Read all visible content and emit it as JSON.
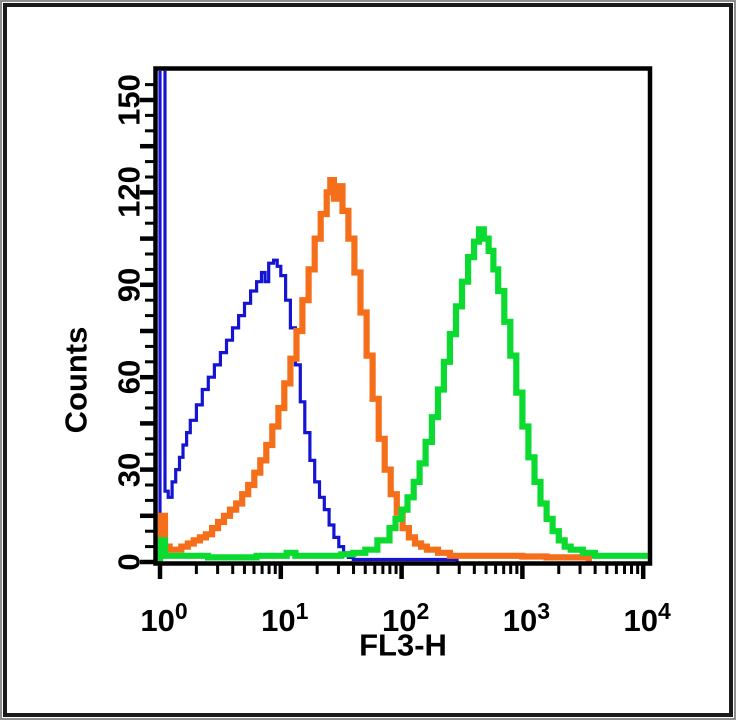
{
  "window": {
    "background": "#ffffff",
    "outer_edge_color": "#8f8f8f",
    "border_color": "#1b1b1b"
  },
  "chart_data": {
    "type": "line",
    "subtype": "histogram-step-overlay",
    "title": "",
    "xlabel": "FL3-H",
    "ylabel": "Counts",
    "x_scale": "log10",
    "xlim": [
      1,
      10000
    ],
    "ylim": [
      0,
      160
    ],
    "grid": false,
    "legend": "none",
    "axis_color": "#000000",
    "x_ticks": [
      {
        "value": 1,
        "base": "10",
        "exp": "0"
      },
      {
        "value": 10,
        "base": "10",
        "exp": "1"
      },
      {
        "value": 100,
        "base": "10",
        "exp": "2"
      },
      {
        "value": 1000,
        "base": "10",
        "exp": "3"
      },
      {
        "value": 10000,
        "base": "10",
        "exp": "4"
      }
    ],
    "x_minor_ticks_per_decade": [
      2,
      3,
      4,
      5,
      6,
      7,
      8,
      9
    ],
    "y_ticks": [
      {
        "value": 0,
        "label": "0"
      },
      {
        "value": 30,
        "label": "30"
      },
      {
        "value": 60,
        "label": "60"
      },
      {
        "value": 90,
        "label": "90"
      },
      {
        "value": 120,
        "label": "120"
      },
      {
        "value": 150,
        "label": "150"
      }
    ],
    "y_minor_step": 5,
    "y_medium_step": 15,
    "series": [
      {
        "name": "blue-thin-histogram",
        "color": "#1414d2",
        "line_width": 3.2,
        "peak": {
          "x": 8,
          "count": 98
        },
        "points": [
          [
            1.0,
            165
          ],
          [
            1.1,
            23
          ],
          [
            1.17,
            21
          ],
          [
            1.26,
            26
          ],
          [
            1.35,
            30
          ],
          [
            1.45,
            34
          ],
          [
            1.55,
            38
          ],
          [
            1.66,
            42
          ],
          [
            1.78,
            46
          ],
          [
            2.0,
            51
          ],
          [
            2.24,
            56
          ],
          [
            2.51,
            60
          ],
          [
            2.82,
            64
          ],
          [
            3.16,
            68
          ],
          [
            3.55,
            72
          ],
          [
            3.98,
            76
          ],
          [
            4.47,
            80
          ],
          [
            5.01,
            84
          ],
          [
            5.62,
            88
          ],
          [
            6.31,
            91
          ],
          [
            6.92,
            94
          ],
          [
            7.41,
            91
          ],
          [
            7.94,
            97
          ],
          [
            8.71,
            98
          ],
          [
            9.33,
            96
          ],
          [
            10.0,
            93
          ],
          [
            10.96,
            85
          ],
          [
            12.0,
            76
          ],
          [
            13.2,
            64
          ],
          [
            14.5,
            52
          ],
          [
            15.8,
            42
          ],
          [
            17.4,
            33
          ],
          [
            19.1,
            26
          ],
          [
            20.9,
            21
          ],
          [
            22.9,
            17
          ],
          [
            25.1,
            12
          ],
          [
            27.5,
            8
          ],
          [
            30.2,
            5
          ],
          [
            33.1,
            3
          ],
          [
            36.3,
            1.5
          ],
          [
            39.8,
            0.8
          ],
          [
            100,
            0.8
          ],
          [
            200,
            0.8
          ],
          [
            288,
            0
          ]
        ]
      },
      {
        "name": "orange-thick-histogram",
        "color": "#f56e1a",
        "line_width": 6.2,
        "peak": {
          "x": 26,
          "count": 124
        },
        "points": [
          [
            1.0,
            15
          ],
          [
            1.1,
            5
          ],
          [
            1.2,
            4
          ],
          [
            1.35,
            4
          ],
          [
            1.5,
            5
          ],
          [
            1.7,
            6
          ],
          [
            1.9,
            7
          ],
          [
            2.14,
            8
          ],
          [
            2.4,
            9
          ],
          [
            2.7,
            11
          ],
          [
            3.02,
            13
          ],
          [
            3.39,
            15
          ],
          [
            3.8,
            17
          ],
          [
            4.27,
            19
          ],
          [
            4.79,
            22
          ],
          [
            5.37,
            25
          ],
          [
            6.03,
            29
          ],
          [
            6.76,
            33
          ],
          [
            7.59,
            38
          ],
          [
            8.51,
            44
          ],
          [
            9.55,
            50
          ],
          [
            10.7,
            58
          ],
          [
            12.0,
            66
          ],
          [
            13.5,
            75
          ],
          [
            15.1,
            85
          ],
          [
            17.0,
            95
          ],
          [
            19.1,
            105
          ],
          [
            21.4,
            113
          ],
          [
            24.0,
            120
          ],
          [
            25.7,
            124
          ],
          [
            27.5,
            118
          ],
          [
            29.5,
            122
          ],
          [
            32.4,
            114
          ],
          [
            36.3,
            105
          ],
          [
            40.7,
            94
          ],
          [
            45.7,
            81
          ],
          [
            51.3,
            67
          ],
          [
            57.5,
            53
          ],
          [
            64.6,
            40
          ],
          [
            72.4,
            30
          ],
          [
            81.3,
            22
          ],
          [
            91.2,
            16
          ],
          [
            102,
            11
          ],
          [
            115,
            8
          ],
          [
            129,
            6
          ],
          [
            145,
            5
          ],
          [
            162,
            4
          ],
          [
            200,
            3
          ],
          [
            251,
            2
          ],
          [
            500,
            2
          ],
          [
            1000,
            1.8
          ],
          [
            1585,
            1.5
          ],
          [
            2512,
            1.5
          ],
          [
            3548,
            0
          ]
        ]
      },
      {
        "name": "green-thick-histogram",
        "color": "#0bdb31",
        "line_width": 6.2,
        "peak": {
          "x": 437,
          "count": 108
        },
        "points": [
          [
            1.0,
            7
          ],
          [
            1.1,
            2
          ],
          [
            1.6,
            2
          ],
          [
            2.5,
            1.5
          ],
          [
            4.0,
            1.5
          ],
          [
            6.3,
            2
          ],
          [
            10,
            2
          ],
          [
            11.2,
            3
          ],
          [
            13.2,
            2
          ],
          [
            20,
            2
          ],
          [
            25.1,
            2
          ],
          [
            31.6,
            2.5
          ],
          [
            39.8,
            3
          ],
          [
            50.1,
            4
          ],
          [
            63.1,
            7
          ],
          [
            79.4,
            11
          ],
          [
            89.1,
            14
          ],
          [
            100,
            17
          ],
          [
            112,
            21
          ],
          [
            126,
            26
          ],
          [
            141,
            32
          ],
          [
            158,
            39
          ],
          [
            178,
            47
          ],
          [
            200,
            56
          ],
          [
            224,
            65
          ],
          [
            251,
            74
          ],
          [
            282,
            83
          ],
          [
            316,
            91
          ],
          [
            355,
            99
          ],
          [
            398,
            104
          ],
          [
            437,
            108
          ],
          [
            479,
            105
          ],
          [
            525,
            101
          ],
          [
            575,
            95
          ],
          [
            631,
            88
          ],
          [
            708,
            78
          ],
          [
            794,
            67
          ],
          [
            891,
            55
          ],
          [
            1000,
            44
          ],
          [
            1122,
            34
          ],
          [
            1259,
            26
          ],
          [
            1413,
            19
          ],
          [
            1585,
            14
          ],
          [
            1778,
            10
          ],
          [
            2000,
            7
          ],
          [
            2239,
            5
          ],
          [
            2512,
            4
          ],
          [
            3162,
            3
          ],
          [
            3981,
            2
          ],
          [
            6310,
            2
          ],
          [
            10000,
            2
          ]
        ]
      }
    ]
  }
}
